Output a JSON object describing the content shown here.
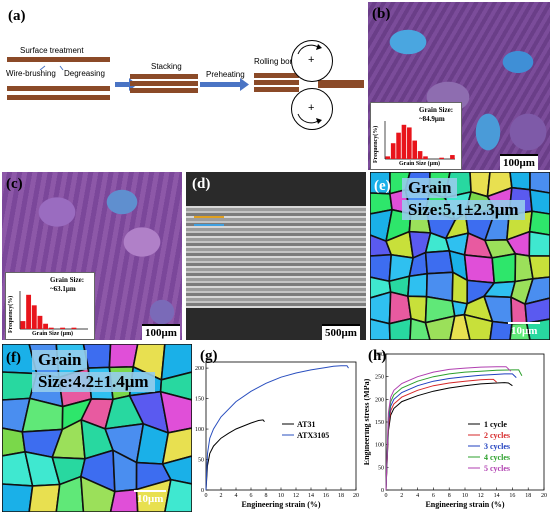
{
  "panel_labels": {
    "a": "(a)",
    "b": "(b)",
    "c": "(c)",
    "d": "(d)",
    "e": "(e)",
    "f": "(f)",
    "g": "(g)",
    "h": "(h)"
  },
  "process": {
    "surface_treatment": "Surface treatment",
    "wire_brushing": "Wire-brushing",
    "degreasing": "Degreasing",
    "stacking": "Stacking",
    "preheating": "Preheating",
    "rolling_bonding": "Rolling bonding",
    "plus": "+"
  },
  "panel_b": {
    "inset_title": "Grain Size:",
    "inset_value": "~84.9μm",
    "inset_x": "Grain Size (μm)",
    "inset_y": "Frequency(%)",
    "scale": "100μm",
    "hist": [
      2,
      12,
      20,
      26,
      24,
      14,
      6,
      2,
      0,
      0,
      1,
      0,
      3
    ]
  },
  "panel_c": {
    "inset_title": "Grain Size:",
    "inset_value": "~63.1μm",
    "inset_x": "Grain Size (μm)",
    "inset_y": "Frequency(%)",
    "scale": "100μm",
    "hist": [
      6,
      26,
      18,
      10,
      4,
      1,
      0,
      1,
      0,
      1,
      0,
      0
    ]
  },
  "panel_d": {
    "scale": "500μm"
  },
  "panel_e": {
    "grain_word": "Grain",
    "grain_size": "Size:5.1±2.3μm",
    "scale": "10μm"
  },
  "panel_f": {
    "grain_word": "Grain",
    "grain_size": "Size:4.2±1.4μm",
    "scale": "10μm"
  },
  "chart_data": [
    {
      "type": "line",
      "panel": "g",
      "xlabel": "Engineering strain (%)",
      "ylabel": "Engineering stress (MPa)",
      "xlim": [
        0,
        20
      ],
      "ylim": [
        0,
        210
      ],
      "xticks": [
        0,
        2,
        4,
        6,
        8,
        10,
        12,
        14,
        16,
        18,
        20
      ],
      "yticks": [
        0,
        50,
        100,
        150,
        200
      ],
      "legend_position": "right",
      "series": [
        {
          "name": "AT31",
          "color": "#000000",
          "x": [
            0,
            0.2,
            0.5,
            1,
            2,
            3,
            4,
            5,
            6,
            7,
            7.6,
            7.8
          ],
          "y": [
            0,
            40,
            60,
            72,
            85,
            93,
            100,
            105,
            110,
            114,
            115,
            112
          ]
        },
        {
          "name": "ATX3105",
          "color": "#2a4fbf",
          "x": [
            0,
            0.2,
            0.5,
            1,
            2,
            4,
            6,
            8,
            10,
            12,
            14,
            16,
            17,
            18,
            18.8,
            19
          ],
          "y": [
            0,
            60,
            85,
            100,
            120,
            145,
            162,
            175,
            185,
            192,
            197,
            201,
            203,
            204,
            204,
            200
          ]
        }
      ]
    },
    {
      "type": "line",
      "panel": "h",
      "xlabel": "Engineering strain (%)",
      "ylabel": "Engineering stress (MPa)",
      "xlim": [
        0,
        20
      ],
      "ylim": [
        0,
        300
      ],
      "xticks": [
        0,
        2,
        4,
        6,
        8,
        10,
        12,
        14,
        16,
        18,
        20
      ],
      "yticks": [
        0,
        50,
        100,
        150,
        200,
        250,
        300
      ],
      "legend_position": "bottom-right",
      "series": [
        {
          "name": "1 cycle",
          "color": "#000000",
          "x": [
            0,
            0.3,
            0.6,
            1,
            2,
            4,
            6,
            8,
            10,
            12,
            14,
            15,
            15.5,
            16
          ],
          "y": [
            0,
            130,
            165,
            180,
            195,
            208,
            218,
            225,
            230,
            234,
            236,
            237,
            236,
            230
          ]
        },
        {
          "name": "2 cycles",
          "color": "#d62728",
          "x": [
            0,
            0.3,
            0.6,
            1,
            2,
            4,
            6,
            8,
            10,
            12,
            13,
            13.6,
            14
          ],
          "y": [
            0,
            140,
            175,
            190,
            205,
            220,
            230,
            236,
            240,
            243,
            244,
            244,
            238
          ]
        },
        {
          "name": "3 cycles",
          "color": "#1f3fbf",
          "x": [
            0,
            0.3,
            0.6,
            1,
            2,
            4,
            6,
            8,
            10,
            12,
            14,
            15,
            16,
            16.5
          ],
          "y": [
            0,
            150,
            185,
            200,
            215,
            230,
            240,
            246,
            250,
            253,
            255,
            256,
            256,
            248
          ]
        },
        {
          "name": "4 cycles",
          "color": "#2ca02c",
          "x": [
            0,
            0.3,
            0.6,
            1,
            2,
            4,
            6,
            8,
            10,
            12,
            14,
            16,
            16.8,
            17.2
          ],
          "y": [
            0,
            160,
            195,
            210,
            225,
            240,
            250,
            256,
            260,
            262,
            264,
            265,
            265,
            252
          ]
        },
        {
          "name": "5 cycles",
          "color": "#b03fb0",
          "x": [
            0,
            0.3,
            0.6,
            1,
            2,
            4,
            6,
            8,
            10,
            12,
            14,
            15.2,
            15.8
          ],
          "y": [
            0,
            170,
            205,
            220,
            235,
            250,
            260,
            266,
            269,
            271,
            272,
            272,
            262
          ]
        }
      ]
    }
  ]
}
